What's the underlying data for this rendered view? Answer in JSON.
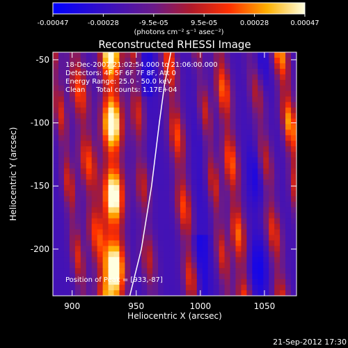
{
  "colorbar": {
    "tick_labels": [
      "-0.00047",
      "-0.00028",
      "-9.5e-05",
      "9.5e-05",
      "0.00028",
      "0.00047"
    ],
    "unit_label": "(photons cm⁻² s⁻¹ asec⁻²)"
  },
  "chart_data": {
    "type": "heatmap",
    "title": "Reconstructed RHESSI Image",
    "xlabel": "Heliocentric X (arcsec)",
    "ylabel": "Heliocentric Y (arcsec)",
    "xlim": [
      885,
      1075
    ],
    "ylim": [
      -237,
      -44
    ],
    "x_ticks": [
      900,
      950,
      1000,
      1050
    ],
    "y_ticks": [
      -50,
      -100,
      -150,
      -200
    ],
    "color_range": [
      -0.00047,
      0.00047
    ],
    "colormap": "blue-purple-red-yellow-white",
    "annotations": {
      "date_range": "18-Dec-2007 21:02:54.000 to 21:06:00.000",
      "detectors": "Detectors: 4F 5F 6F 7F 8F, Att 0",
      "energy": "Energy Range: 25.0 - 50.0 keV",
      "clean": "Clean     Total counts: 1.17E+04",
      "peak": "Position of Peak = [933,-87]"
    },
    "limb_curve": [
      [
        945,
        -237
      ],
      [
        954,
        -200
      ],
      [
        962,
        -150
      ],
      [
        968,
        -100
      ],
      [
        972,
        -70
      ],
      [
        977,
        -44
      ]
    ]
  },
  "footer_timestamp": "21-Sep-2012 17:30"
}
